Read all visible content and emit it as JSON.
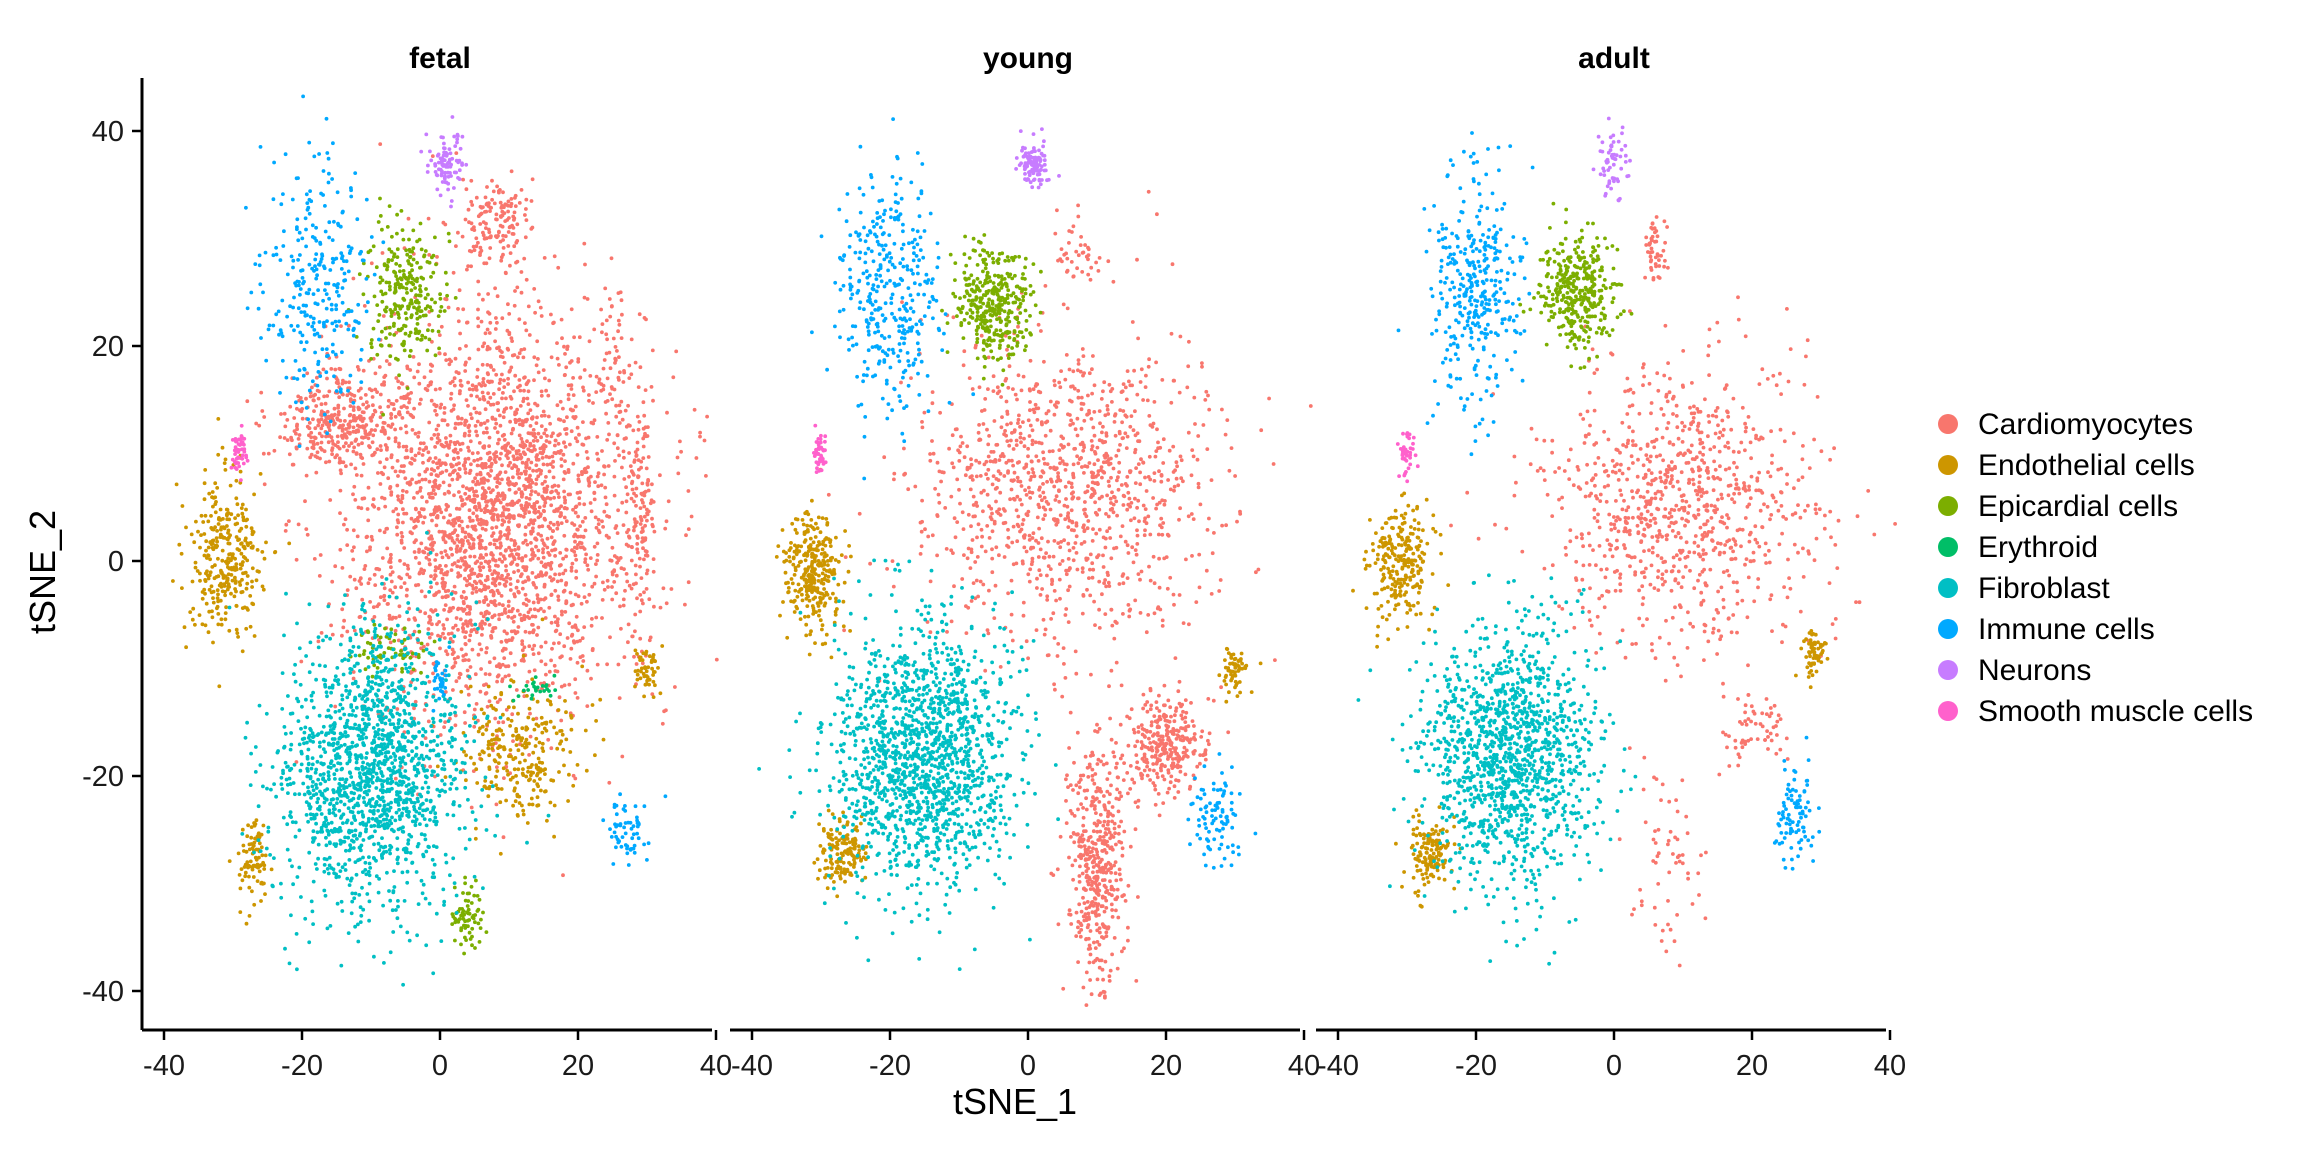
{
  "chart_data": {
    "type": "scatter",
    "xlabel": "tSNE_1",
    "ylabel": "tSNE_2",
    "xlim": [
      -42,
      42
    ],
    "ylim": [
      -43,
      45
    ],
    "x_ticks": [
      -40,
      -20,
      0,
      20,
      40
    ],
    "y_ticks": [
      -40,
      -20,
      0,
      20,
      40
    ],
    "grid": false,
    "legend_position": "right",
    "facets": [
      "fetal",
      "young",
      "adult"
    ],
    "series": [
      {
        "name": "Cardiomyocytes",
        "color": "#F8766D"
      },
      {
        "name": "Endothelial cells",
        "color": "#CD9600"
      },
      {
        "name": "Epicardial cells",
        "color": "#7CAE00"
      },
      {
        "name": "Erythroid",
        "color": "#00BE67"
      },
      {
        "name": "Fibroblast",
        "color": "#00BFC4"
      },
      {
        "name": "Immune cells",
        "color": "#00A9FF"
      },
      {
        "name": "Neurons",
        "color": "#C77CFF"
      },
      {
        "name": "Smooth muscle cells",
        "color": "#FF61CC"
      }
    ],
    "clusters": {
      "fetal": [
        {
          "series": 0,
          "cx": 8,
          "cy": 4,
          "rx": 19,
          "ry": 17,
          "n": 2600
        },
        {
          "series": 0,
          "cx": -14,
          "cy": 13,
          "rx": 9,
          "ry": 4,
          "n": 350
        },
        {
          "series": 0,
          "cx": 8,
          "cy": 31,
          "rx": 5,
          "ry": 4,
          "n": 150
        },
        {
          "series": 0,
          "cx": 29,
          "cy": 5,
          "rx": 2,
          "ry": 11,
          "n": 120
        },
        {
          "series": 0,
          "cx": 25,
          "cy": 18,
          "rx": 2,
          "ry": 6,
          "n": 50
        },
        {
          "series": 1,
          "cx": -31,
          "cy": 0,
          "rx": 5,
          "ry": 7,
          "n": 320
        },
        {
          "series": 1,
          "cx": -27,
          "cy": -28,
          "rx": 2,
          "ry": 4,
          "n": 90
        },
        {
          "series": 1,
          "cx": 12,
          "cy": -18,
          "rx": 8,
          "ry": 6,
          "n": 260
        },
        {
          "series": 1,
          "cx": 30,
          "cy": -10,
          "rx": 2,
          "ry": 2,
          "n": 50
        },
        {
          "series": 2,
          "cx": -5,
          "cy": 25,
          "rx": 5,
          "ry": 6,
          "n": 260
        },
        {
          "series": 2,
          "cx": 4,
          "cy": -33,
          "rx": 2,
          "ry": 3,
          "n": 70
        },
        {
          "series": 2,
          "cx": -8,
          "cy": -8,
          "rx": 5,
          "ry": 2,
          "n": 60
        },
        {
          "series": 3,
          "cx": 14,
          "cy": -12,
          "rx": 3,
          "ry": 1,
          "n": 25
        },
        {
          "series": 4,
          "cx": -10,
          "cy": -19,
          "rx": 12,
          "ry": 12,
          "n": 1500
        },
        {
          "series": 5,
          "cx": -18,
          "cy": 25,
          "rx": 7,
          "ry": 11,
          "n": 280
        },
        {
          "series": 5,
          "cx": 27,
          "cy": -25,
          "rx": 3,
          "ry": 3,
          "n": 60
        },
        {
          "series": 5,
          "cx": 0,
          "cy": -11,
          "rx": 1,
          "ry": 2,
          "n": 30
        },
        {
          "series": 6,
          "cx": 1,
          "cy": 37,
          "rx": 2,
          "ry": 3,
          "n": 90
        },
        {
          "series": 7,
          "cx": -29,
          "cy": 10,
          "rx": 1,
          "ry": 2,
          "n": 50
        }
      ],
      "young": [
        {
          "series": 0,
          "cx": 6,
          "cy": 7,
          "rx": 19,
          "ry": 13,
          "n": 1100
        },
        {
          "series": 0,
          "cx": 10,
          "cy": -28,
          "rx": 4,
          "ry": 10,
          "n": 450
        },
        {
          "series": 0,
          "cx": 20,
          "cy": -17,
          "rx": 5,
          "ry": 4,
          "n": 300
        },
        {
          "series": 0,
          "cx": 7,
          "cy": 28,
          "rx": 3,
          "ry": 3,
          "n": 40
        },
        {
          "series": 1,
          "cx": -31,
          "cy": -1,
          "rx": 4,
          "ry": 5,
          "n": 300
        },
        {
          "series": 1,
          "cx": -27,
          "cy": -27,
          "rx": 3,
          "ry": 3,
          "n": 150
        },
        {
          "series": 1,
          "cx": 30,
          "cy": -10,
          "rx": 2,
          "ry": 2,
          "n": 60
        },
        {
          "series": 2,
          "cx": -5,
          "cy": 24,
          "rx": 5,
          "ry": 5,
          "n": 350
        },
        {
          "series": 4,
          "cx": -15,
          "cy": -18,
          "rx": 12,
          "ry": 11,
          "n": 1500
        },
        {
          "series": 5,
          "cx": -20,
          "cy": 25,
          "rx": 7,
          "ry": 10,
          "n": 350
        },
        {
          "series": 5,
          "cx": 27,
          "cy": -24,
          "rx": 3,
          "ry": 4,
          "n": 90
        },
        {
          "series": 6,
          "cx": 1,
          "cy": 37,
          "rx": 2,
          "ry": 2,
          "n": 100
        },
        {
          "series": 7,
          "cx": -30,
          "cy": 10,
          "rx": 1,
          "ry": 2,
          "n": 40
        }
      ],
      "adult": [
        {
          "series": 0,
          "cx": 10,
          "cy": 5,
          "rx": 18,
          "ry": 12,
          "n": 900
        },
        {
          "series": 0,
          "cx": 8,
          "cy": -28,
          "rx": 6,
          "ry": 8,
          "n": 60
        },
        {
          "series": 0,
          "cx": 20,
          "cy": -16,
          "rx": 4,
          "ry": 3,
          "n": 60
        },
        {
          "series": 0,
          "cx": 6,
          "cy": 29,
          "rx": 2,
          "ry": 3,
          "n": 50
        },
        {
          "series": 1,
          "cx": -31,
          "cy": 0,
          "rx": 4,
          "ry": 5,
          "n": 250
        },
        {
          "series": 1,
          "cx": -27,
          "cy": -27,
          "rx": 3,
          "ry": 3,
          "n": 140
        },
        {
          "series": 1,
          "cx": 29,
          "cy": -9,
          "rx": 2,
          "ry": 2,
          "n": 60
        },
        {
          "series": 2,
          "cx": -5,
          "cy": 25,
          "rx": 5,
          "ry": 5,
          "n": 350
        },
        {
          "series": 4,
          "cx": -15,
          "cy": -18,
          "rx": 11,
          "ry": 11,
          "n": 1300
        },
        {
          "series": 5,
          "cx": -20,
          "cy": 25,
          "rx": 6,
          "ry": 10,
          "n": 350
        },
        {
          "series": 5,
          "cx": 26,
          "cy": -24,
          "rx": 3,
          "ry": 4,
          "n": 90
        },
        {
          "series": 6,
          "cx": 0,
          "cy": 37,
          "rx": 2,
          "ry": 3,
          "n": 60
        },
        {
          "series": 7,
          "cx": -30,
          "cy": 10,
          "rx": 1,
          "ry": 2,
          "n": 40
        }
      ]
    }
  }
}
